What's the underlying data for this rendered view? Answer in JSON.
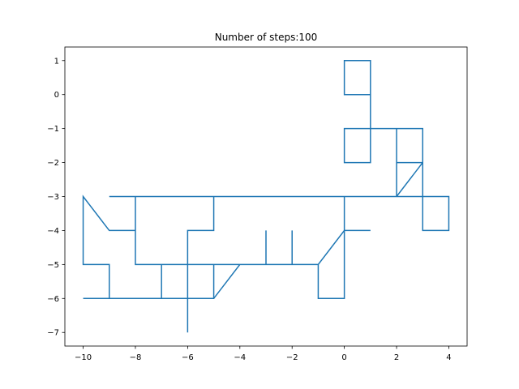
{
  "chart_data": {
    "type": "line",
    "title": "Number of steps:100",
    "xlabel": "",
    "ylabel": "",
    "xlim": [
      -10.7,
      4.7
    ],
    "ylim": [
      -7.4,
      1.4
    ],
    "xticks": [
      -10,
      -8,
      -6,
      -4,
      -2,
      0,
      2,
      4
    ],
    "yticks": [
      -7,
      -6,
      -5,
      -4,
      -3,
      -2,
      -1,
      0,
      1
    ],
    "xtick_labels": [
      "−10",
      "−8",
      "−6",
      "−4",
      "−2",
      "0",
      "2",
      "4"
    ],
    "ytick_labels": [
      "−7",
      "−6",
      "−5",
      "−4",
      "−3",
      "−2",
      "−1",
      "0",
      "1"
    ],
    "grid": false,
    "series": [
      {
        "color": "#1f77b4",
        "x": [
          0,
          1,
          1,
          0,
          0,
          1,
          1,
          0,
          0,
          1,
          1,
          2,
          2,
          3,
          3,
          2,
          2,
          3,
          3,
          4,
          4,
          3,
          3,
          2,
          1,
          0,
          0,
          1,
          0,
          0,
          -1,
          -1,
          -2,
          -2,
          -2,
          -3,
          -3,
          -3,
          -4,
          -5,
          -5,
          -6,
          -6,
          -6,
          -5,
          -5,
          -6,
          -7,
          -8,
          -8,
          -8,
          -9,
          -8,
          -8,
          -9,
          -10,
          -10,
          -9,
          -9,
          -10,
          -9,
          -8,
          -7,
          -7,
          -7,
          -6,
          -5,
          -5,
          -6,
          -6,
          -7,
          -8,
          -9,
          -10,
          -9,
          -8,
          -7,
          -6,
          -5,
          -4,
          -3,
          -2,
          -1,
          0,
          1,
          0,
          0,
          -1,
          -2,
          -3,
          -4,
          -5,
          -6,
          -7,
          -8,
          -8,
          -7,
          -6,
          -5,
          -6,
          -6
        ],
        "y": [
          0,
          0,
          1,
          1,
          0,
          0,
          -1,
          -1,
          -2,
          -2,
          -1,
          -1,
          -2,
          -2,
          -1,
          -1,
          -3,
          -3,
          -4,
          -4,
          -3,
          -3,
          -2,
          -3,
          -3,
          -3,
          -4,
          -4,
          -4,
          -6,
          -6,
          -5,
          -5,
          -4,
          -5,
          -5,
          -4,
          -5,
          -5,
          -5,
          -6,
          -6,
          -5,
          -4,
          -4,
          -3,
          -3,
          -3,
          -3,
          -4,
          -3,
          -3,
          -3,
          -4,
          -4,
          -3,
          -5,
          -5,
          -6,
          -6,
          -6,
          -6,
          -6,
          -5,
          -6,
          -6,
          -6,
          -5,
          -5,
          -6,
          -6,
          -6,
          -6,
          -6,
          -6,
          -6,
          -6,
          -6,
          -6,
          -5,
          -5,
          -5,
          -5,
          -4,
          -4,
          -4,
          -3,
          -3,
          -3,
          -3,
          -3,
          -3,
          -3,
          -3,
          -3,
          -5,
          -5,
          -5,
          -5,
          -5,
          -7
        ]
      }
    ]
  }
}
